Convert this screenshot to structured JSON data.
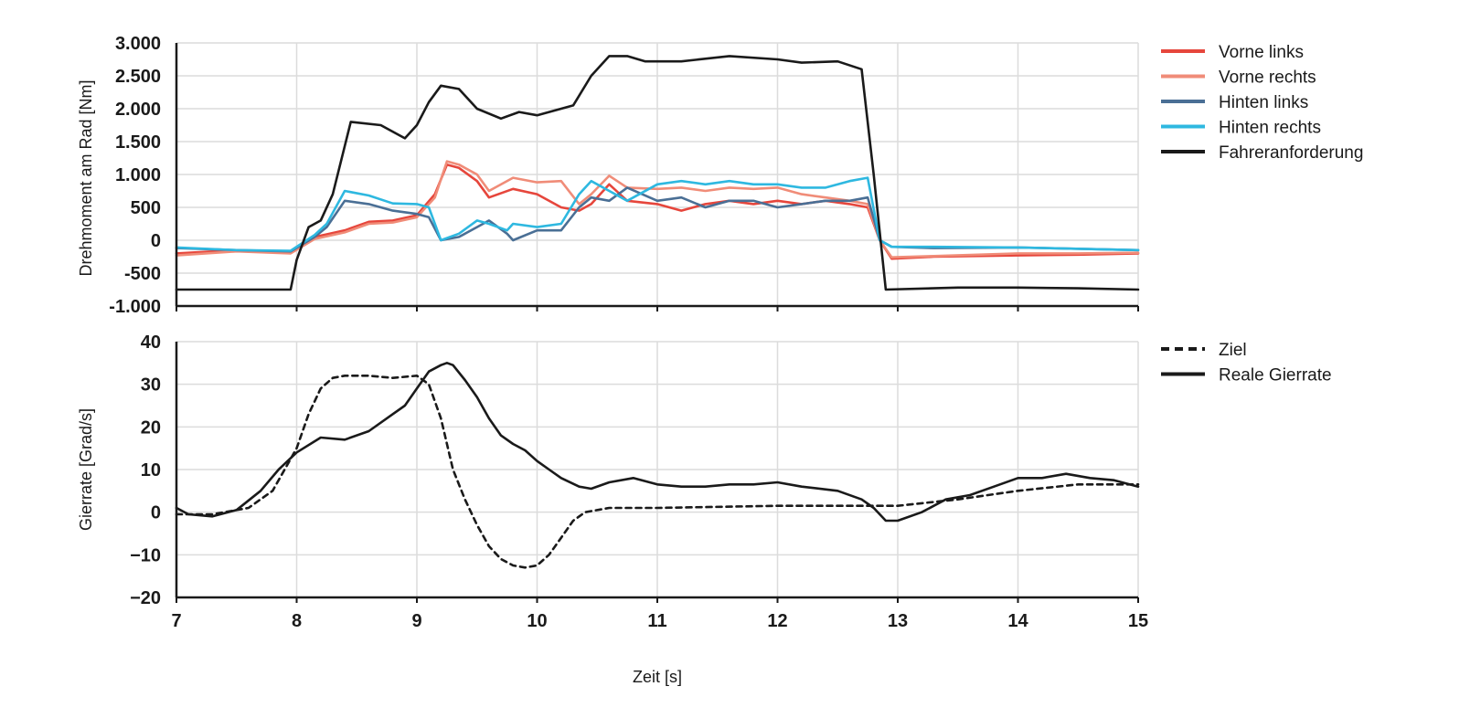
{
  "chart_data": [
    {
      "type": "line",
      "ylabel": "Drehmoment am Rad [Nm]",
      "xlabel": "",
      "xlim": [
        7,
        15
      ],
      "ylim": [
        -1000,
        3000
      ],
      "yticks": [
        -1000,
        -500,
        0,
        500,
        1000,
        1500,
        2000,
        2500,
        3000
      ],
      "ytick_labels": [
        "-1.000",
        "-500",
        "0",
        "500",
        "1.000",
        "1.500",
        "2.000",
        "2.500",
        "3.000"
      ],
      "xticks": [
        7,
        8,
        9,
        10,
        11,
        12,
        13,
        14,
        15
      ],
      "legend_position": "right",
      "series": [
        {
          "name": "Vorne links",
          "color": "#e6463c",
          "dash": "",
          "x": [
            7,
            7.5,
            7.95,
            8.15,
            8.4,
            8.6,
            8.8,
            9.0,
            9.15,
            9.25,
            9.35,
            9.5,
            9.6,
            9.8,
            10.0,
            10.2,
            10.35,
            10.45,
            10.6,
            10.75,
            11.0,
            11.2,
            11.4,
            11.6,
            11.8,
            12.0,
            12.2,
            12.4,
            12.6,
            12.75,
            12.85,
            12.95,
            13.3,
            14.0,
            14.5,
            15
          ],
          "values": [
            -200,
            -150,
            -180,
            50,
            150,
            280,
            300,
            380,
            700,
            1150,
            1100,
            900,
            650,
            780,
            700,
            500,
            450,
            550,
            850,
            600,
            550,
            450,
            550,
            600,
            550,
            600,
            550,
            600,
            550,
            500,
            0,
            -280,
            -250,
            -230,
            -220,
            -200
          ]
        },
        {
          "name": "Vorne rechts",
          "color": "#f08c78",
          "dash": "",
          "x": [
            7,
            7.5,
            7.95,
            8.15,
            8.4,
            8.6,
            8.8,
            9.0,
            9.15,
            9.25,
            9.35,
            9.5,
            9.6,
            9.8,
            10.0,
            10.2,
            10.35,
            10.45,
            10.6,
            10.75,
            11.0,
            11.2,
            11.4,
            11.6,
            11.8,
            12.0,
            12.2,
            12.4,
            12.6,
            12.75,
            12.85,
            12.95,
            13.3,
            14.0,
            14.5,
            15
          ],
          "values": [
            -230,
            -170,
            -200,
            20,
            120,
            250,
            270,
            350,
            650,
            1200,
            1150,
            1000,
            750,
            950,
            880,
            900,
            550,
            700,
            980,
            800,
            780,
            800,
            750,
            800,
            780,
            800,
            700,
            650,
            600,
            550,
            0,
            -260,
            -240,
            -200,
            -200,
            -190
          ]
        },
        {
          "name": "Hinten links",
          "color": "#4a6f95",
          "dash": "",
          "x": [
            7,
            7.5,
            7.95,
            8.15,
            8.25,
            8.4,
            8.6,
            8.8,
            9.0,
            9.1,
            9.2,
            9.35,
            9.5,
            9.6,
            9.75,
            9.8,
            10.0,
            10.2,
            10.35,
            10.45,
            10.6,
            10.75,
            11.0,
            11.2,
            11.4,
            11.6,
            11.8,
            12.0,
            12.2,
            12.4,
            12.6,
            12.75,
            12.85,
            12.95,
            13.3,
            14.0,
            15
          ],
          "values": [
            -120,
            -150,
            -170,
            50,
            200,
            600,
            550,
            450,
            400,
            350,
            0,
            50,
            200,
            300,
            100,
            0,
            150,
            150,
            500,
            650,
            600,
            800,
            600,
            650,
            500,
            600,
            600,
            500,
            550,
            600,
            600,
            650,
            0,
            -100,
            -120,
            -110,
            -150
          ]
        },
        {
          "name": "Hinten rechts",
          "color": "#2eb8e0",
          "dash": "",
          "x": [
            7,
            7.5,
            7.95,
            8.15,
            8.25,
            8.4,
            8.6,
            8.8,
            9.0,
            9.1,
            9.2,
            9.35,
            9.5,
            9.6,
            9.75,
            9.8,
            10.0,
            10.2,
            10.35,
            10.45,
            10.6,
            10.75,
            11.0,
            11.2,
            11.4,
            11.6,
            11.8,
            12.0,
            12.2,
            12.4,
            12.6,
            12.75,
            12.85,
            12.95,
            13.3,
            14.0,
            15
          ],
          "values": [
            -110,
            -150,
            -160,
            80,
            250,
            750,
            680,
            560,
            550,
            500,
            0,
            100,
            300,
            250,
            150,
            250,
            200,
            250,
            700,
            900,
            750,
            600,
            850,
            900,
            850,
            900,
            850,
            850,
            800,
            800,
            900,
            950,
            0,
            -100,
            -100,
            -110,
            -150
          ]
        },
        {
          "name": "Fahreranforderung",
          "color": "#1a1a1a",
          "dash": "",
          "x": [
            7,
            7.5,
            7.95,
            8.0,
            8.1,
            8.2,
            8.3,
            8.45,
            8.7,
            8.9,
            9.0,
            9.1,
            9.2,
            9.35,
            9.5,
            9.7,
            9.85,
            10.0,
            10.3,
            10.45,
            10.6,
            10.75,
            10.9,
            11.2,
            11.6,
            12.0,
            12.2,
            12.5,
            12.7,
            12.8,
            12.9,
            13.5,
            14.0,
            14.5,
            15
          ],
          "values": [
            -750,
            -750,
            -750,
            -300,
            200,
            300,
            700,
            1800,
            1750,
            1550,
            1750,
            2100,
            2350,
            2300,
            2000,
            1850,
            1950,
            1900,
            2050,
            2500,
            2800,
            2800,
            2720,
            2720,
            2800,
            2750,
            2700,
            2720,
            2600,
            1000,
            -750,
            -720,
            -720,
            -730,
            -750
          ]
        }
      ]
    },
    {
      "type": "line",
      "ylabel": "Gierrate [Grad/s]",
      "xlabel": "Zeit [s]",
      "xlim": [
        7,
        15
      ],
      "ylim": [
        -20,
        40
      ],
      "yticks": [
        -20,
        -10,
        0,
        10,
        20,
        30,
        40
      ],
      "ytick_labels": [
        "−20",
        "−10",
        "0",
        "10",
        "20",
        "30",
        "40"
      ],
      "xticks": [
        7,
        8,
        9,
        10,
        11,
        12,
        13,
        14,
        15
      ],
      "xtick_labels": [
        "7",
        "8",
        "9",
        "10",
        "11",
        "12",
        "13",
        "14",
        "15"
      ],
      "legend_position": "right",
      "series": [
        {
          "name": "Ziel",
          "color": "#1a1a1a",
          "dash": "6 5",
          "x": [
            7,
            7.3,
            7.6,
            7.8,
            8.0,
            8.1,
            8.2,
            8.3,
            8.4,
            8.6,
            8.8,
            9.0,
            9.1,
            9.2,
            9.3,
            9.4,
            9.5,
            9.6,
            9.7,
            9.8,
            9.9,
            10.0,
            10.1,
            10.2,
            10.3,
            10.4,
            10.6,
            10.8,
            11.0,
            12.0,
            13.0,
            13.5,
            14.0,
            14.5,
            15
          ],
          "values": [
            -0.5,
            -0.5,
            1,
            5,
            15,
            23,
            29,
            31.5,
            32,
            32,
            31.5,
            32,
            30,
            22,
            10,
            3,
            -3,
            -8,
            -11,
            -12.5,
            -13,
            -12.5,
            -10,
            -6,
            -2,
            0,
            1,
            1,
            1,
            1.5,
            1.5,
            3,
            5,
            6.5,
            6.5
          ]
        },
        {
          "name": "Reale Gierrate",
          "color": "#1a1a1a",
          "dash": "",
          "x": [
            7,
            7.1,
            7.3,
            7.5,
            7.7,
            7.85,
            8.0,
            8.2,
            8.4,
            8.6,
            8.8,
            8.9,
            9.0,
            9.1,
            9.2,
            9.25,
            9.3,
            9.4,
            9.5,
            9.6,
            9.7,
            9.8,
            9.9,
            10.0,
            10.1,
            10.2,
            10.35,
            10.45,
            10.6,
            10.8,
            11.0,
            11.2,
            11.4,
            11.6,
            11.8,
            12.0,
            12.2,
            12.5,
            12.7,
            12.8,
            12.9,
            13.0,
            13.2,
            13.4,
            13.6,
            13.8,
            14.0,
            14.2,
            14.4,
            14.6,
            14.8,
            15
          ],
          "values": [
            1,
            -0.5,
            -1,
            0.5,
            5,
            10,
            14,
            17.5,
            17,
            19,
            23,
            25,
            29,
            33,
            34.5,
            35,
            34.5,
            31,
            27,
            22,
            18,
            16,
            14.5,
            12,
            10,
            8,
            6,
            5.5,
            7,
            8,
            6.5,
            6,
            6,
            6.5,
            6.5,
            7,
            6,
            5,
            3,
            1,
            -2,
            -2,
            0,
            3,
            4,
            6,
            8,
            8,
            9,
            8,
            7.5,
            6
          ]
        }
      ]
    }
  ]
}
